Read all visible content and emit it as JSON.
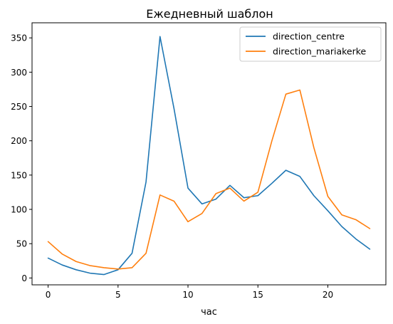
{
  "chart_data": {
    "type": "line",
    "title": "Ежедневный шаблон",
    "xlabel": "час",
    "ylabel": "",
    "xlim": [
      -1.15,
      24.15
    ],
    "ylim": [
      -10,
      372
    ],
    "xticks": [
      0,
      5,
      10,
      15,
      20
    ],
    "yticks": [
      0,
      50,
      100,
      150,
      200,
      250,
      300,
      350
    ],
    "grid": false,
    "legend_position": "top-right",
    "x": [
      0,
      1,
      2,
      3,
      4,
      5,
      6,
      7,
      8,
      9,
      10,
      11,
      12,
      13,
      14,
      15,
      16,
      17,
      18,
      19,
      20,
      21,
      22,
      23
    ],
    "series": [
      {
        "name": "direction_centre",
        "color": "#1f77b4",
        "values": [
          29,
          19,
          12,
          7,
          5,
          12,
          36,
          140,
          352,
          247,
          131,
          108,
          115,
          135,
          117,
          120,
          138,
          157,
          148,
          120,
          98,
          75,
          57,
          42
        ]
      },
      {
        "name": "direction_mariakerke",
        "color": "#ff7f0e",
        "values": [
          53,
          35,
          24,
          18,
          15,
          13,
          15,
          36,
          121,
          112,
          82,
          94,
          123,
          131,
          112,
          125,
          200,
          268,
          274,
          190,
          119,
          92,
          85,
          72
        ]
      }
    ]
  }
}
